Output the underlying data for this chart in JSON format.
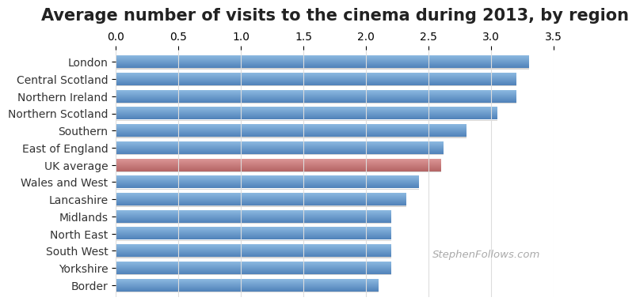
{
  "title": "Average number of visits to the cinema during 2013, by region",
  "categories": [
    "London",
    "Central Scotland",
    "Northern Ireland",
    "Northern Scotland",
    "Southern",
    "East of England",
    "UK average",
    "Wales and West",
    "Lancashire",
    "Midlands",
    "North East",
    "South West",
    "Yorkshire",
    "Border"
  ],
  "values": [
    3.3,
    3.2,
    3.2,
    3.05,
    2.8,
    2.62,
    2.6,
    2.42,
    2.32,
    2.2,
    2.2,
    2.2,
    2.2,
    2.1
  ],
  "bar_color_default": "#6699CC",
  "bar_color_highlight": "#CC7777",
  "highlight_index": 6,
  "xlim": [
    0,
    3.5
  ],
  "xticks": [
    0.0,
    0.5,
    1.0,
    1.5,
    2.0,
    2.5,
    3.0,
    3.5
  ],
  "watermark": "StephenFollows.com",
  "background_color": "#FFFFFF",
  "title_fontsize": 15,
  "tick_fontsize": 10,
  "label_fontsize": 10
}
